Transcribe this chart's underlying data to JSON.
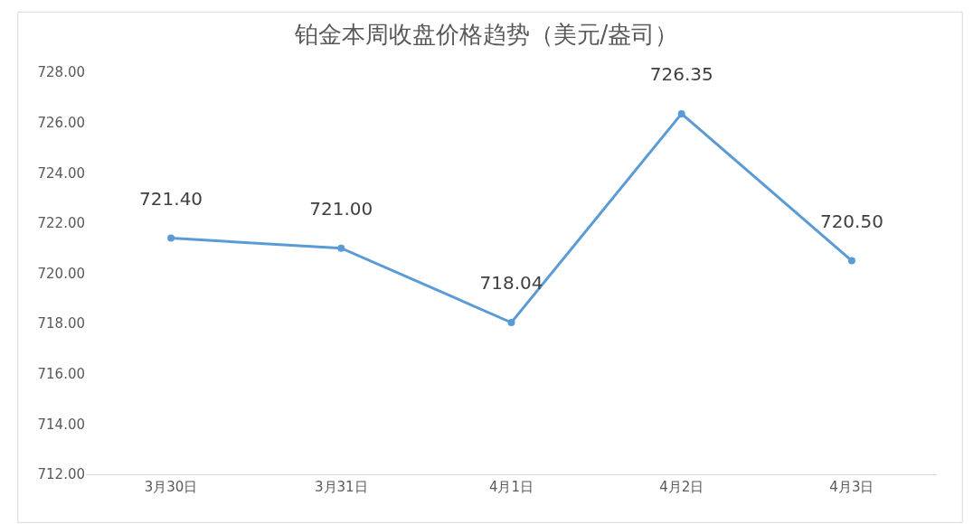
{
  "chart_data": {
    "type": "line",
    "title": "铂金本周收盘价格趋势（美元/盎司）",
    "categories": [
      "3月30日",
      "3月31日",
      "4月1日",
      "4月2日",
      "4月3日"
    ],
    "series": [
      {
        "color": "#5b9bd5",
        "values": [
          721.4,
          721.0,
          718.04,
          726.35,
          720.5
        ],
        "value_labels": [
          "721.40",
          "721.00",
          "718.04",
          "726.35",
          "720.50"
        ]
      }
    ],
    "ylim": [
      712,
      728
    ],
    "yticks": [
      {
        "value": 712,
        "label": "712.00"
      },
      {
        "value": 714,
        "label": "714.00"
      },
      {
        "value": 716,
        "label": "716.00"
      },
      {
        "value": 718,
        "label": "718.00"
      },
      {
        "value": 720,
        "label": "720.00"
      },
      {
        "value": 722,
        "label": "722.00"
      },
      {
        "value": 724,
        "label": "724.00"
      },
      {
        "value": 726,
        "label": "726.00"
      },
      {
        "value": 728,
        "label": "728.00"
      }
    ],
    "marker": "circle",
    "line_style": "solid"
  }
}
